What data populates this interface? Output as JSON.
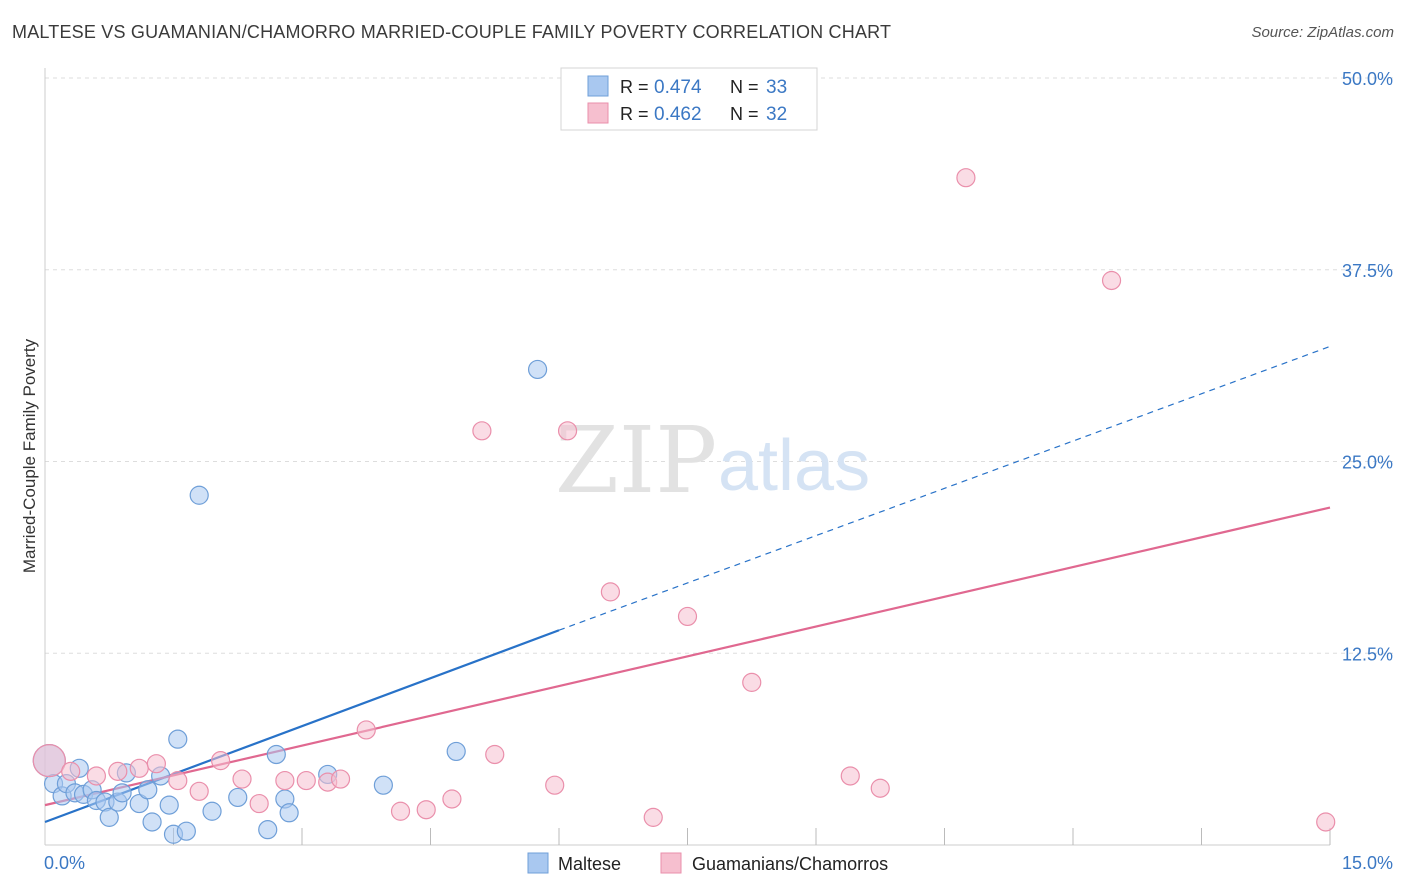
{
  "header": {
    "title": "MALTESE VS GUAMANIAN/CHAMORRO MARRIED-COUPLE FAMILY POVERTY CORRELATION CHART",
    "source": "Source: ZipAtlas.com"
  },
  "watermark": {
    "zip": "ZIP",
    "atlas": "atlas"
  },
  "colors": {
    "blue": "#a9c8f0",
    "blue_stroke": "#6f9fd8",
    "blue_line": "#2872c8",
    "pink": "#f6bfcf",
    "pink_stroke": "#ea8fab",
    "pink_line": "#e06890",
    "value_text": "#3b78c4",
    "grid": "#dddddd"
  },
  "legend_top": {
    "rows": [
      {
        "r_label": "R = ",
        "r_value": "0.474",
        "n_label": "N = ",
        "n_value": "33",
        "swatch": "blue"
      },
      {
        "r_label": "R = ",
        "r_value": "0.462",
        "n_label": "N = ",
        "n_value": "32",
        "swatch": "pink"
      }
    ]
  },
  "legend_bottom": [
    {
      "label": "Maltese",
      "swatch": "blue"
    },
    {
      "label": "Guamanians/Chamorros",
      "swatch": "pink"
    }
  ],
  "chart_data": {
    "type": "scatter",
    "title": "MALTESE VS GUAMANIAN/CHAMORRO MARRIED-COUPLE FAMILY POVERTY CORRELATION CHART",
    "ylabel": "Married-Couple Family Poverty",
    "xlabel": "",
    "xlim": [
      0,
      15
    ],
    "ylim": [
      0,
      50
    ],
    "x_tick_labels": [
      {
        "value": 0,
        "label": "0.0%"
      },
      {
        "value": 15,
        "label": "15.0%"
      }
    ],
    "y_tick_labels": [
      {
        "value": 12.5,
        "label": "12.5%"
      },
      {
        "value": 25,
        "label": "25.0%"
      },
      {
        "value": 37.5,
        "label": "37.5%"
      },
      {
        "value": 50,
        "label": "50.0%"
      }
    ],
    "grid": true,
    "legend_position": "top-center",
    "series": [
      {
        "name": "Maltese",
        "color": "blue",
        "R": 0.474,
        "N": 33,
        "trend": {
          "x0": 0,
          "y0": 1.5,
          "x1": 6.0,
          "y1": 14.0,
          "dashed_to_x": 15,
          "dashed_to_y": 32.5
        },
        "points": [
          [
            0.05,
            5.5
          ],
          [
            0.1,
            4.0
          ],
          [
            0.2,
            3.2
          ],
          [
            0.25,
            4.0
          ],
          [
            0.35,
            3.4
          ],
          [
            0.4,
            5.0
          ],
          [
            0.45,
            3.3
          ],
          [
            0.55,
            3.6
          ],
          [
            0.6,
            2.9
          ],
          [
            0.7,
            2.8
          ],
          [
            0.75,
            1.8
          ],
          [
            0.85,
            2.8
          ],
          [
            0.9,
            3.4
          ],
          [
            0.95,
            4.7
          ],
          [
            1.1,
            2.7
          ],
          [
            1.2,
            3.6
          ],
          [
            1.25,
            1.5
          ],
          [
            1.35,
            4.5
          ],
          [
            1.45,
            2.6
          ],
          [
            1.5,
            0.7
          ],
          [
            1.55,
            6.9
          ],
          [
            1.65,
            0.9
          ],
          [
            1.8,
            22.8
          ],
          [
            1.95,
            2.2
          ],
          [
            2.25,
            3.1
          ],
          [
            2.6,
            1.0
          ],
          [
            2.7,
            5.9
          ],
          [
            2.8,
            3.0
          ],
          [
            2.85,
            2.1
          ],
          [
            3.3,
            4.6
          ],
          [
            3.95,
            3.9
          ],
          [
            4.8,
            6.1
          ],
          [
            5.75,
            31.0
          ]
        ]
      },
      {
        "name": "Guamanians/Chamorros",
        "color": "pink",
        "R": 0.462,
        "N": 32,
        "trend": {
          "x0": 0,
          "y0": 2.6,
          "x1": 15,
          "y1": 22.0
        },
        "points": [
          [
            0.05,
            5.5
          ],
          [
            0.3,
            4.8
          ],
          [
            0.6,
            4.5
          ],
          [
            0.85,
            4.8
          ],
          [
            1.1,
            5.0
          ],
          [
            1.3,
            5.3
          ],
          [
            1.55,
            4.2
          ],
          [
            1.8,
            3.5
          ],
          [
            2.05,
            5.5
          ],
          [
            2.3,
            4.3
          ],
          [
            2.5,
            2.7
          ],
          [
            2.8,
            4.2
          ],
          [
            3.05,
            4.2
          ],
          [
            3.3,
            4.1
          ],
          [
            3.45,
            4.3
          ],
          [
            3.75,
            7.5
          ],
          [
            4.15,
            2.2
          ],
          [
            4.45,
            2.3
          ],
          [
            4.75,
            3.0
          ],
          [
            5.1,
            27.0
          ],
          [
            5.25,
            5.9
          ],
          [
            5.95,
            3.9
          ],
          [
            6.1,
            27.0
          ],
          [
            6.6,
            16.5
          ],
          [
            7.1,
            1.8
          ],
          [
            7.5,
            14.9
          ],
          [
            8.25,
            10.6
          ],
          [
            9.4,
            4.5
          ],
          [
            9.75,
            3.7
          ],
          [
            10.75,
            43.5
          ],
          [
            12.45,
            36.8
          ],
          [
            14.95,
            1.5
          ]
        ]
      }
    ]
  }
}
